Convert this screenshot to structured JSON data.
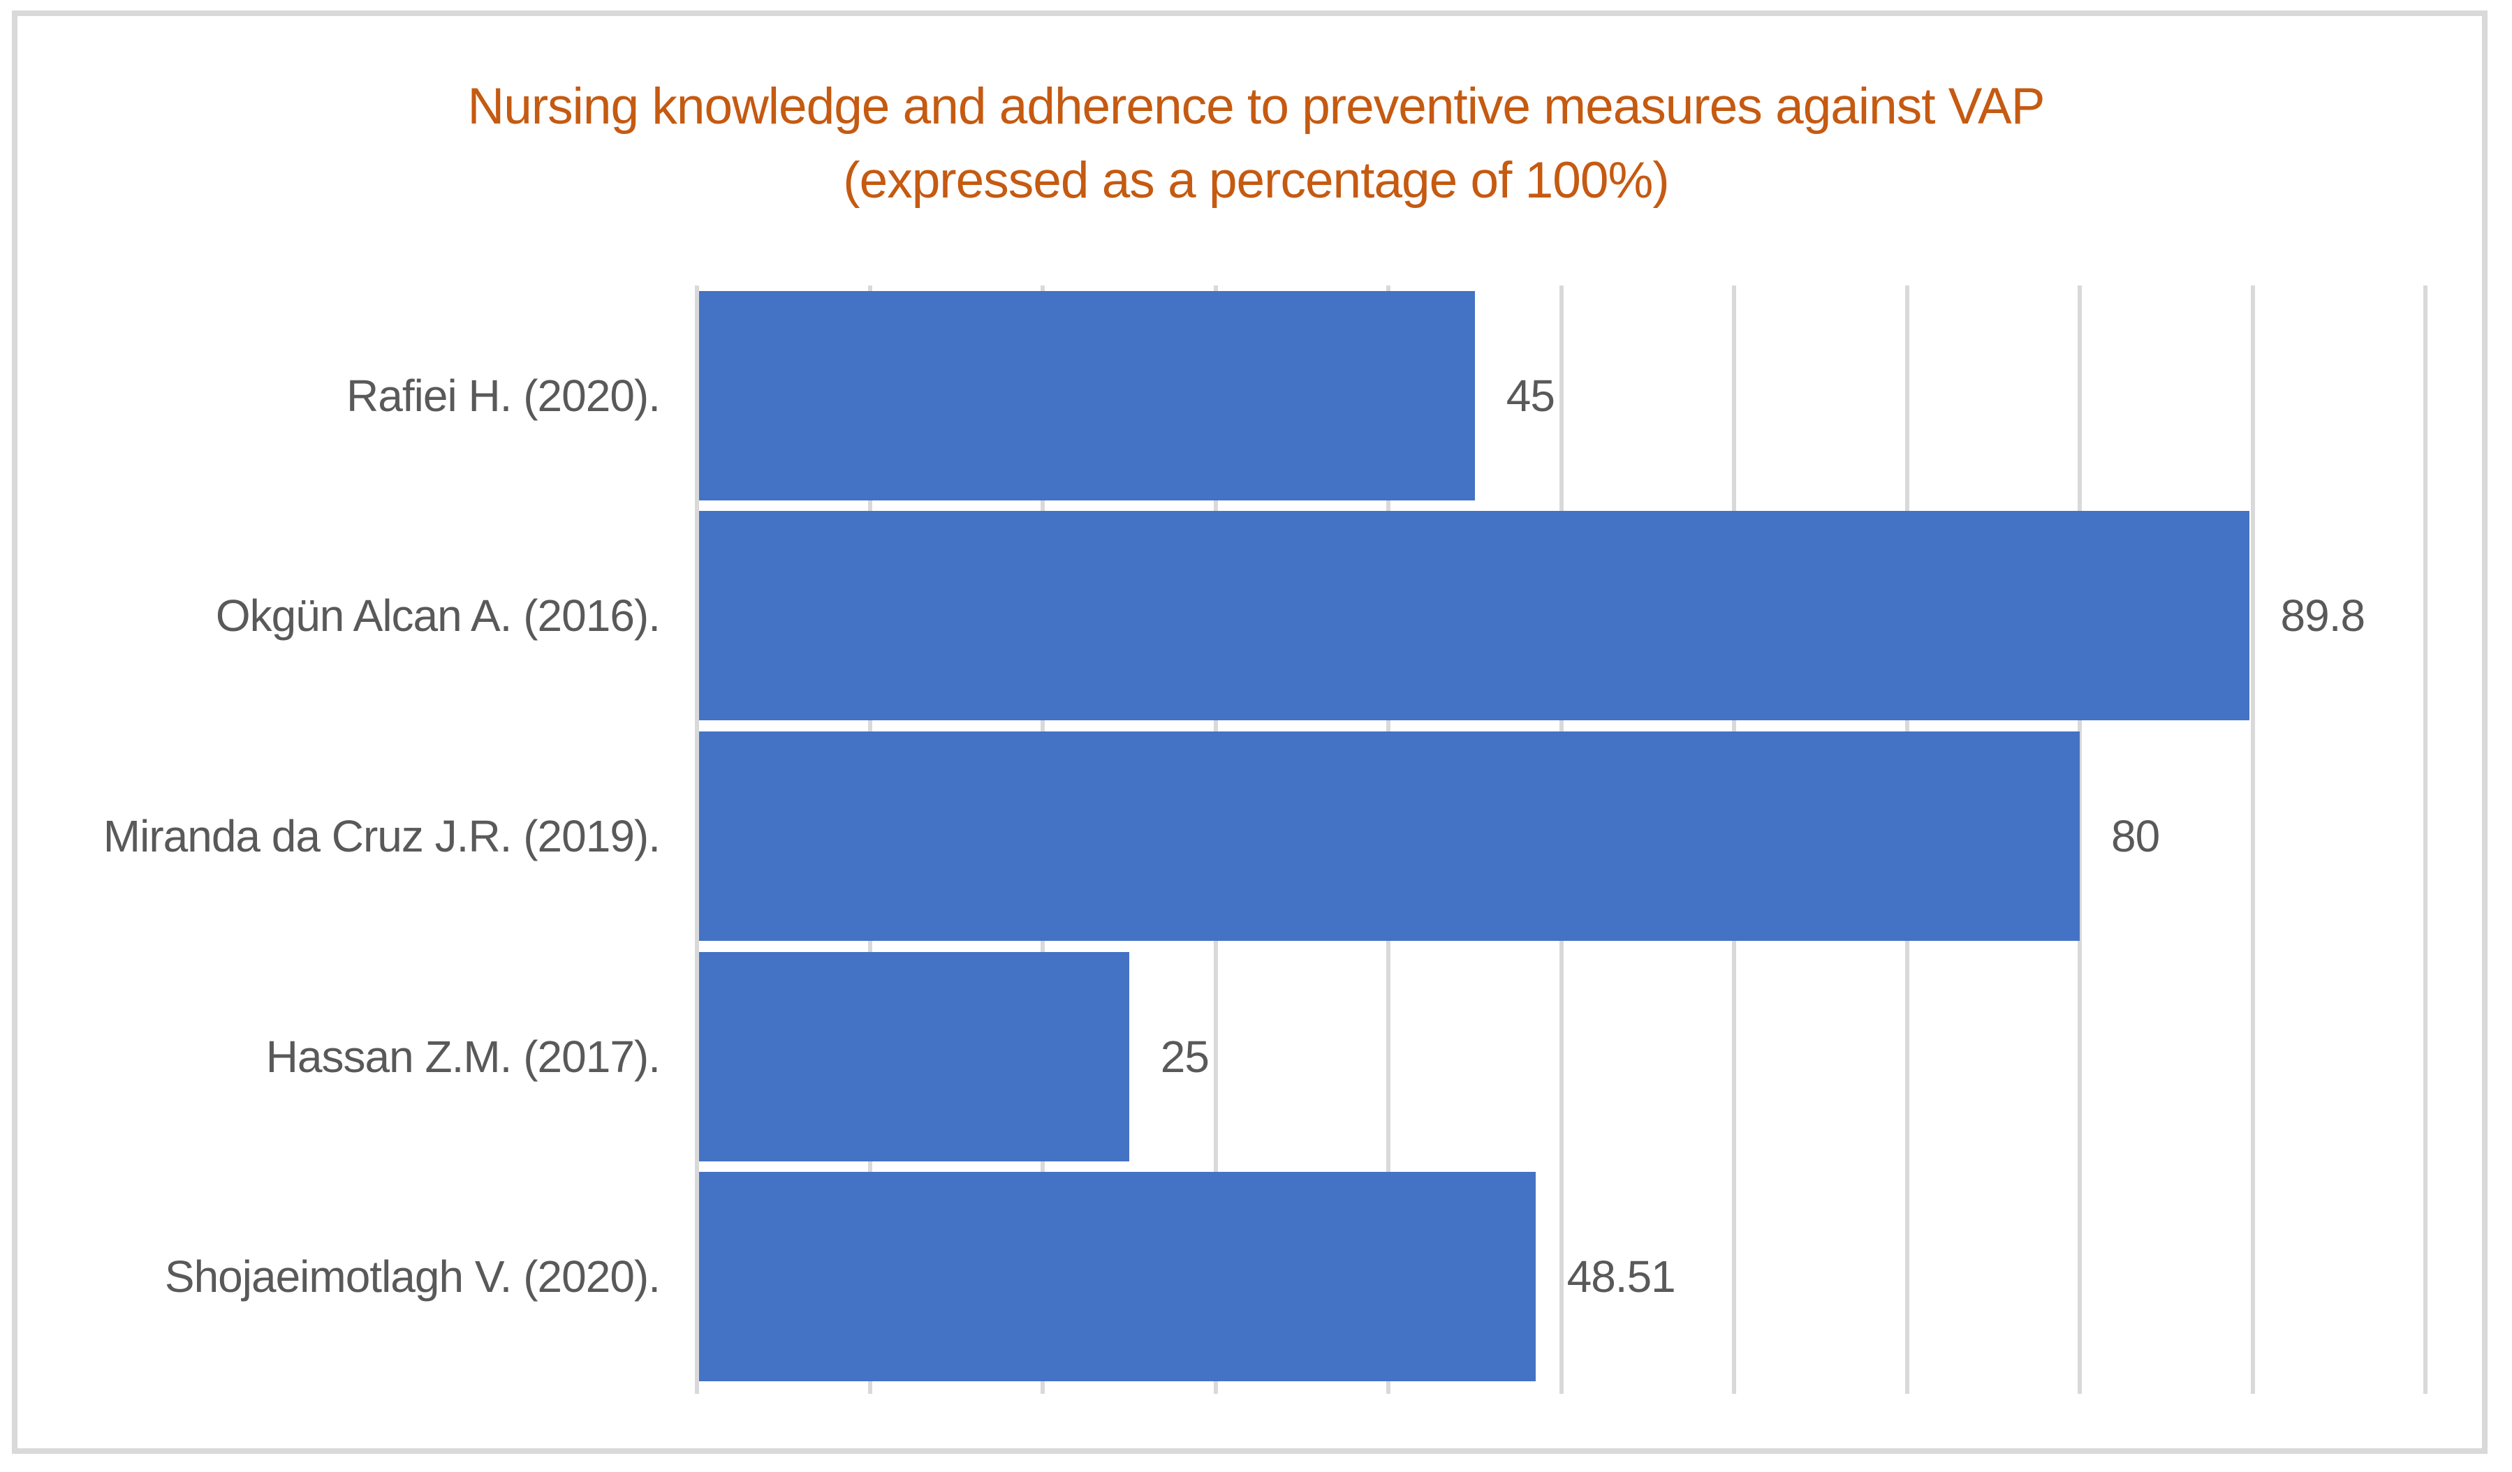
{
  "chart_data": {
    "type": "bar",
    "orientation": "horizontal",
    "title": "Nursing knowledge and adherence to preventive measures against VAP",
    "subtitle": "(expressed as a percentage of 100%)",
    "categories": [
      "Rafiei H. (2020).",
      "Okgün Alcan A. (2016).",
      "Miranda da Cruz J.R. (2019).",
      "Hassan Z.M. (2017).",
      "Shojaeimotlagh V. (2020)."
    ],
    "values": [
      45,
      89.8,
      80,
      25,
      48.51
    ],
    "value_labels": [
      "45",
      "89.8",
      "80",
      "25",
      "48.51"
    ],
    "xlim": [
      0,
      100
    ],
    "gridline_step": 10,
    "grid": true,
    "legend": false,
    "colors": {
      "bar": "#4472C4",
      "title": "#C55A11",
      "label": "#595959",
      "gridline": "#D9D9D9",
      "border": "#D9D9D9",
      "background": "#FFFFFF"
    }
  }
}
